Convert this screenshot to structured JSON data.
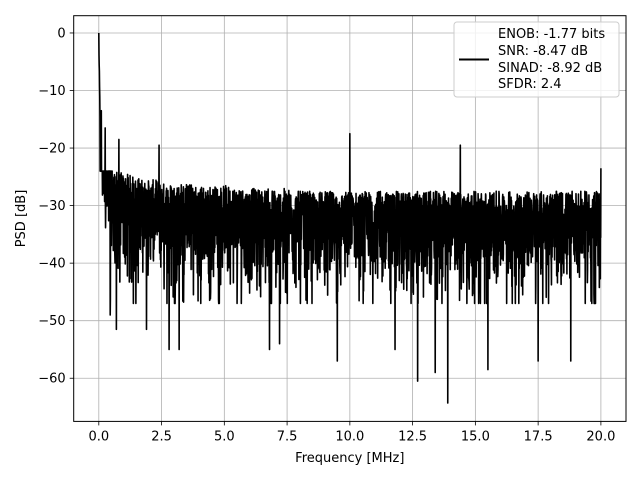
{
  "chart_data": {
    "type": "line",
    "title": "",
    "xlabel": "Frequency [MHz]",
    "ylabel": "PSD [dB]",
    "xlim": [
      -1.0,
      21.0
    ],
    "ylim": [
      -67.5,
      3.0
    ],
    "xticks": [
      0.0,
      2.5,
      5.0,
      7.5,
      10.0,
      12.5,
      15.0,
      17.5,
      20.0
    ],
    "xtick_labels": [
      "0.0",
      "2.5",
      "5.0",
      "7.5",
      "10.0",
      "12.5",
      "15.0",
      "17.5",
      "20.0"
    ],
    "yticks": [
      0,
      -10,
      -20,
      -30,
      -40,
      -50,
      -60
    ],
    "ytick_labels": [
      "0",
      "−10",
      "−20",
      "−30",
      "−40",
      "−50",
      "−60"
    ],
    "grid": true,
    "legend": {
      "placement": "top-right",
      "lines": [
        "ENOB: -1.77 bits",
        "SNR: -8.47 dB",
        "SINAD: -8.92 dB",
        "SFDR: 2.4"
      ]
    },
    "series": [
      {
        "color": "#000000",
        "description_note": "",
        "x": [
          0.0,
          0.02,
          0.05,
          0.1,
          0.15,
          0.2,
          0.25,
          0.3,
          0.4,
          0.5,
          0.6,
          0.7,
          0.8,
          1.0,
          1.2,
          1.4,
          1.6,
          1.8,
          2.0,
          2.3,
          2.6,
          2.8,
          3.1,
          3.5,
          4.0,
          4.5,
          5.0,
          5.5,
          6.0,
          6.5,
          6.8,
          7.2,
          7.6,
          8.0,
          8.5,
          9.0,
          9.5,
          9.6,
          10.0,
          10.5,
          11.0,
          11.5,
          12.0,
          12.5,
          12.8,
          13.3,
          13.9,
          14.3,
          14.5,
          15.0,
          15.5,
          16.0,
          16.5,
          17.0,
          17.5,
          18.0,
          18.5,
          19.0,
          19.5,
          20.0
        ],
        "y": [
          0.0,
          -8.0,
          -14.0,
          -16.0,
          -18.0,
          -22.0,
          -24.0,
          -25.0,
          -26.0,
          -27.0,
          -28.0,
          -28.5,
          -28.5,
          -29.0,
          -29.0,
          -29.5,
          -29.5,
          -30.0,
          -30.0,
          -30.0,
          -30.5,
          -30.5,
          -30.5,
          -30.5,
          -31.0,
          -31.0,
          -31.0,
          -31.0,
          -31.5,
          -31.5,
          -31.5,
          -31.5,
          -31.5,
          -32.0,
          -32.0,
          -32.0,
          -32.0,
          -32.0,
          -32.0,
          -32.0,
          -32.0,
          -32.0,
          -32.0,
          -32.0,
          -32.0,
          -32.0,
          -32.0,
          -32.0,
          -32.0,
          -32.0,
          -32.0,
          -32.0,
          -32.0,
          -32.0,
          -32.0,
          -32.0,
          -32.0,
          -32.0,
          -32.0,
          -32.0
        ],
        "noise_envelope": {
          "upper": -24.0,
          "lower": -47.0,
          "deep_dips": [
            {
              "x": 0.45,
              "y": -49.0
            },
            {
              "x": 0.7,
              "y": -51.5
            },
            {
              "x": 1.9,
              "y": -51.5
            },
            {
              "x": 2.8,
              "y": -55.0
            },
            {
              "x": 3.2,
              "y": -55.0
            },
            {
              "x": 6.8,
              "y": -55.0
            },
            {
              "x": 7.2,
              "y": -54.0
            },
            {
              "x": 9.5,
              "y": -57.0
            },
            {
              "x": 10.0,
              "y": -55.0
            },
            {
              "x": 11.8,
              "y": -55.0
            },
            {
              "x": 12.7,
              "y": -60.5
            },
            {
              "x": 13.4,
              "y": -59.0
            },
            {
              "x": 13.9,
              "y": -64.3
            },
            {
              "x": 14.4,
              "y": -61.8
            },
            {
              "x": 15.5,
              "y": -58.5
            },
            {
              "x": 17.5,
              "y": -57.0
            },
            {
              "x": 18.8,
              "y": -57.0
            }
          ],
          "peaks": [
            {
              "x": 0.1,
              "y": -13.5
            },
            {
              "x": 0.25,
              "y": -16.5
            },
            {
              "x": 0.8,
              "y": -18.5
            },
            {
              "x": 2.4,
              "y": -19.5
            },
            {
              "x": 10.0,
              "y": -17.5
            },
            {
              "x": 14.4,
              "y": -19.5
            },
            {
              "x": 20.0,
              "y": -23.5
            }
          ]
        }
      }
    ]
  }
}
